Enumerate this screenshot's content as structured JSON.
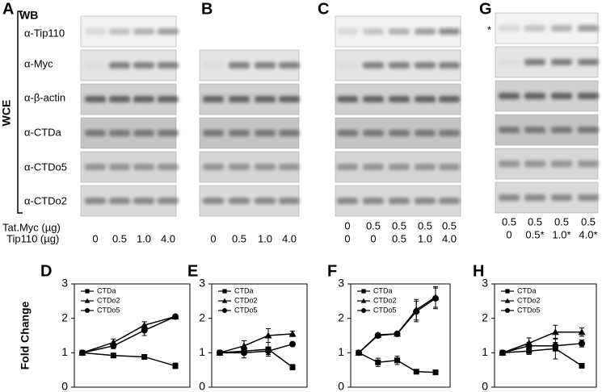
{
  "figure": {
    "wb": "WB",
    "wce": "WCE",
    "asterisk": "*",
    "blot_labels": [
      "α-Tip110",
      "α-Myc",
      "α-β-actin",
      "α-CTDa",
      "α-CTDo5",
      "α-CTDo2"
    ],
    "row_labels": [
      "Tat.Myc (µg)",
      "Tip110 (µg)"
    ],
    "blots": [
      {
        "label": "A",
        "lanes": [
          [
            "0",
            "0.5",
            "1.0",
            "4.0"
          ]
        ]
      },
      {
        "label": "B",
        "lanes": [
          [
            "0",
            "0.5",
            "1.0",
            "4.0"
          ]
        ]
      },
      {
        "label": "C",
        "lanes": [
          [
            "0",
            "0.5",
            "0.5",
            "0.5",
            "0.5"
          ],
          [
            "0",
            "0",
            "0.5",
            "1.0",
            "4.0"
          ]
        ]
      },
      {
        "label": "G",
        "lanes": [
          [
            "0.5",
            "0.5",
            "0.5",
            "0.5"
          ],
          [
            "0",
            "0.5*",
            "1.0*",
            "4.0*"
          ]
        ]
      }
    ]
  },
  "chart_data": [
    {
      "type": "line",
      "panel": "D",
      "ylabel": "Fold Change",
      "ylim": [
        0,
        3
      ],
      "yticks": [
        0,
        1,
        2,
        3
      ],
      "categories": [
        null,
        null,
        null,
        null
      ],
      "series": [
        {
          "name": "CTDa",
          "color": "#000000",
          "marker": "square",
          "values": [
            1,
            0.92,
            0.88,
            0.62
          ],
          "errors": [
            0,
            0.03,
            0.03,
            0.08
          ]
        },
        {
          "name": "CTDo2",
          "color": "#000000",
          "marker": "triangle",
          "values": [
            1,
            1.3,
            1.8,
            2.05
          ],
          "errors": [
            0,
            0.1,
            0.1,
            0.05
          ]
        },
        {
          "name": "CTDo5",
          "color": "#000000",
          "marker": "circle",
          "values": [
            1,
            1.2,
            1.65,
            2.05
          ],
          "errors": [
            0,
            0.08,
            0.15,
            0.05
          ]
        }
      ]
    },
    {
      "type": "line",
      "panel": "E",
      "ylim": [
        0,
        3
      ],
      "yticks": [
        0,
        1,
        2,
        3
      ],
      "categories": [
        null,
        null,
        null,
        null
      ],
      "series": [
        {
          "name": "CTDa",
          "color": "#000000",
          "marker": "square",
          "values": [
            1,
            1.05,
            1.1,
            0.58
          ],
          "errors": [
            0,
            0.1,
            0.2,
            0.08
          ]
        },
        {
          "name": "CTDo2",
          "color": "#000000",
          "marker": "triangle",
          "values": [
            1,
            1.2,
            1.5,
            1.55
          ],
          "errors": [
            0,
            0.15,
            0.2,
            0.08
          ]
        },
        {
          "name": "CTDo5",
          "color": "#000000",
          "marker": "circle",
          "values": [
            1,
            1.0,
            1.05,
            1.25
          ],
          "errors": [
            0,
            0.15,
            0.1,
            0.03
          ]
        }
      ]
    },
    {
      "type": "line",
      "panel": "F",
      "ylim": [
        0,
        3
      ],
      "yticks": [
        0,
        1,
        2,
        3
      ],
      "categories": [
        null,
        null,
        null,
        null,
        null
      ],
      "series": [
        {
          "name": "CTDa",
          "color": "#000000",
          "marker": "square",
          "values": [
            1,
            0.72,
            0.78,
            0.45,
            0.43
          ],
          "errors": [
            0,
            0.12,
            0.12,
            0.03,
            0.05
          ]
        },
        {
          "name": "CTDo2",
          "color": "#000000",
          "marker": "triangle",
          "values": [
            1,
            1.52,
            1.55,
            2.25,
            2.62
          ],
          "errors": [
            0,
            0.05,
            0.05,
            0.3,
            0.3
          ]
        },
        {
          "name": "CTDo5",
          "color": "#000000",
          "marker": "circle",
          "values": [
            1,
            1.5,
            1.55,
            2.2,
            2.58
          ],
          "errors": [
            0,
            0.05,
            0.05,
            0.3,
            0.3
          ]
        }
      ]
    },
    {
      "type": "line",
      "panel": "H",
      "ylim": [
        0,
        3
      ],
      "yticks": [
        0,
        1,
        2,
        3
      ],
      "categories": [
        null,
        null,
        null,
        null
      ],
      "series": [
        {
          "name": "CTDa",
          "color": "#000000",
          "marker": "square",
          "values": [
            1,
            1.05,
            1.12,
            0.62
          ],
          "errors": [
            0,
            0.1,
            0.3,
            0.03
          ]
        },
        {
          "name": "CTDo2",
          "color": "#000000",
          "marker": "triangle",
          "values": [
            1,
            1.28,
            1.6,
            1.6
          ],
          "errors": [
            0,
            0.15,
            0.2,
            0.12
          ]
        },
        {
          "name": "CTDo5",
          "color": "#000000",
          "marker": "circle",
          "values": [
            1,
            1.2,
            1.2,
            1.27
          ],
          "errors": [
            0,
            0.1,
            0.1,
            0.1
          ]
        }
      ]
    }
  ]
}
